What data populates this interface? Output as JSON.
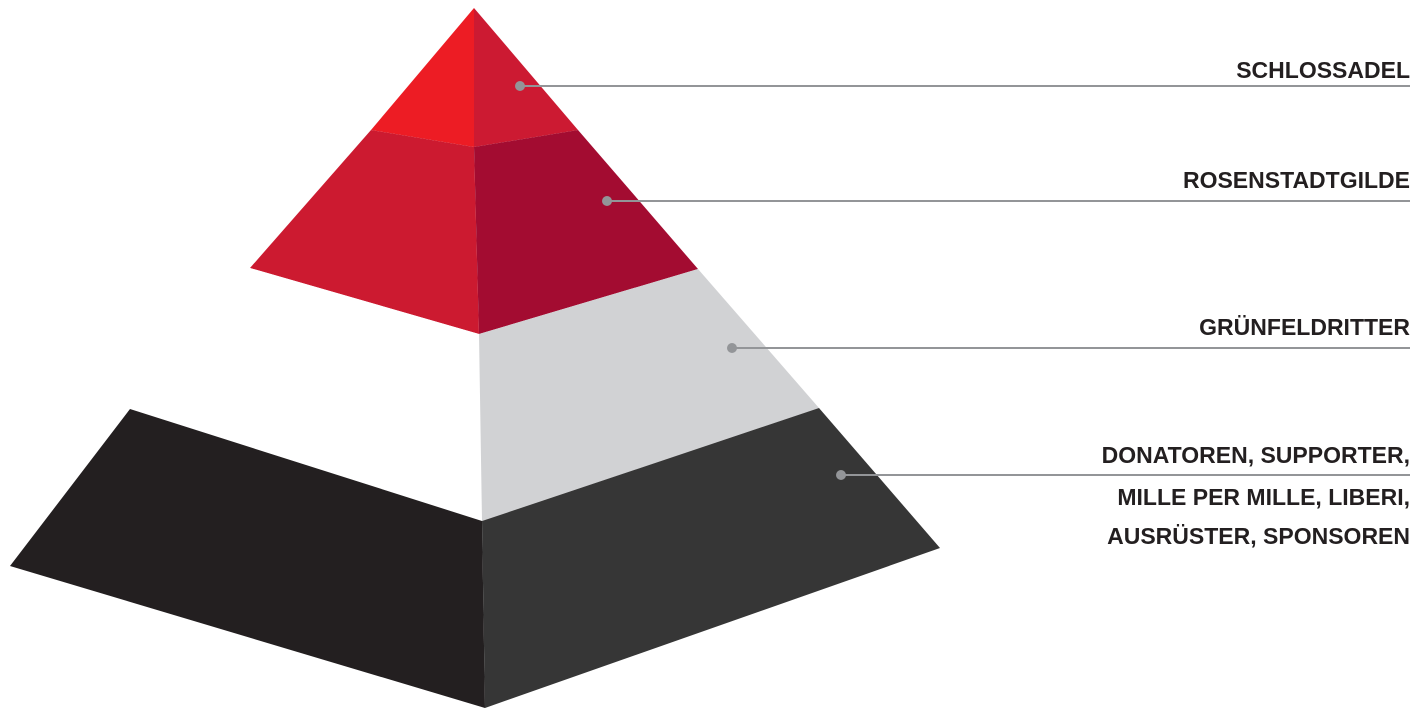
{
  "tiers": [
    {
      "id": "schlossadel",
      "label_lines": [
        "SCHLOSSADEL"
      ],
      "colors": {
        "left": "#ed1c24",
        "right": "#cc1a32"
      }
    },
    {
      "id": "rosenstadtgilde",
      "label_lines": [
        "ROSENSTADTGILDE"
      ],
      "colors": {
        "left": "#cc1a30",
        "right": "#a30c31"
      }
    },
    {
      "id": "gruenfeldritter",
      "label_lines": [
        "GRÜNFELDRITTER"
      ],
      "colors": {
        "left": "#ffffff",
        "right": "#d1d2d4"
      }
    },
    {
      "id": "donatoren",
      "label_lines": [
        "DONATOREN, SUPPORTER,",
        "MILLE PER MILLE, LIBERI,",
        "AUSRÜSTER, SPONSOREN"
      ],
      "colors": {
        "left": "#231f20",
        "right": "#363636"
      }
    }
  ],
  "leader_color": "#939598",
  "label_color": "#231f20"
}
